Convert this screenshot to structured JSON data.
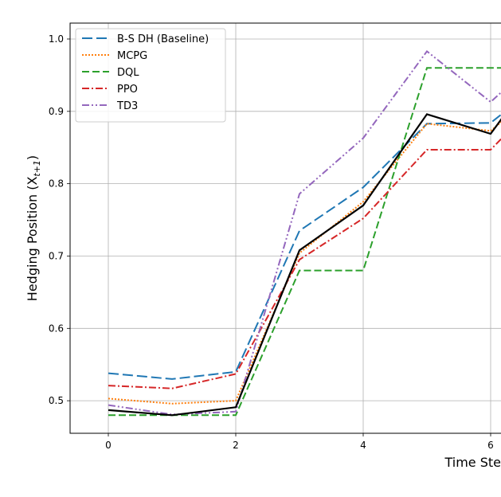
{
  "chart_data": {
    "type": "line",
    "xlabel": "Time Ste",
    "ylabel": "Hedging Position (X",
    "ylabel_sub": "t+1",
    "ylabel_close": ")",
    "xlim": [
      -0.6,
      6.3
    ],
    "ylim": [
      0.455,
      1.022
    ],
    "x_ticks": [
      0,
      2,
      4,
      6
    ],
    "x_tick_labels": [
      "0",
      "2",
      "4",
      "6"
    ],
    "y_ticks": [
      0.5,
      0.6,
      0.7,
      0.8,
      0.9,
      1.0
    ],
    "y_tick_labels": [
      "0.5",
      "0.6",
      "0.7",
      "0.8",
      "0.9",
      "1.0"
    ],
    "grid": true,
    "legend_position": "top-left",
    "x": [
      0,
      1,
      2,
      3,
      4,
      5,
      6,
      6.3
    ],
    "series": [
      {
        "name": "B-S DH (Baseline)",
        "color": "#1f77b4",
        "dash": "13,5",
        "values": [
          0.538,
          0.53,
          0.54,
          0.735,
          0.795,
          0.883,
          0.884,
          0.905
        ]
      },
      {
        "name": "MCPG",
        "color": "#ff7f0e",
        "dash": "2,2",
        "values": [
          0.503,
          0.496,
          0.5,
          0.704,
          0.775,
          0.883,
          0.873,
          0.895
        ]
      },
      {
        "name": "DQL",
        "color": "#2ca02c",
        "dash": "9,4",
        "values": [
          0.48,
          0.48,
          0.48,
          0.68,
          0.68,
          0.96,
          0.96,
          0.96
        ]
      },
      {
        "name": "PPO",
        "color": "#d62728",
        "dash": "9,3,2,3",
        "values": [
          0.521,
          0.517,
          0.537,
          0.695,
          0.752,
          0.847,
          0.847,
          0.874
        ]
      },
      {
        "name": "TD3",
        "color": "#9467bd",
        "dash": "9,3,2,3,2,3",
        "values": [
          0.494,
          0.481,
          0.485,
          0.786,
          0.863,
          0.983,
          0.913,
          0.937
        ]
      },
      {
        "name": "",
        "color": "#000000",
        "dash": "",
        "values": [
          0.487,
          0.48,
          0.491,
          0.708,
          0.77,
          0.896,
          0.869,
          0.905
        ]
      }
    ]
  }
}
